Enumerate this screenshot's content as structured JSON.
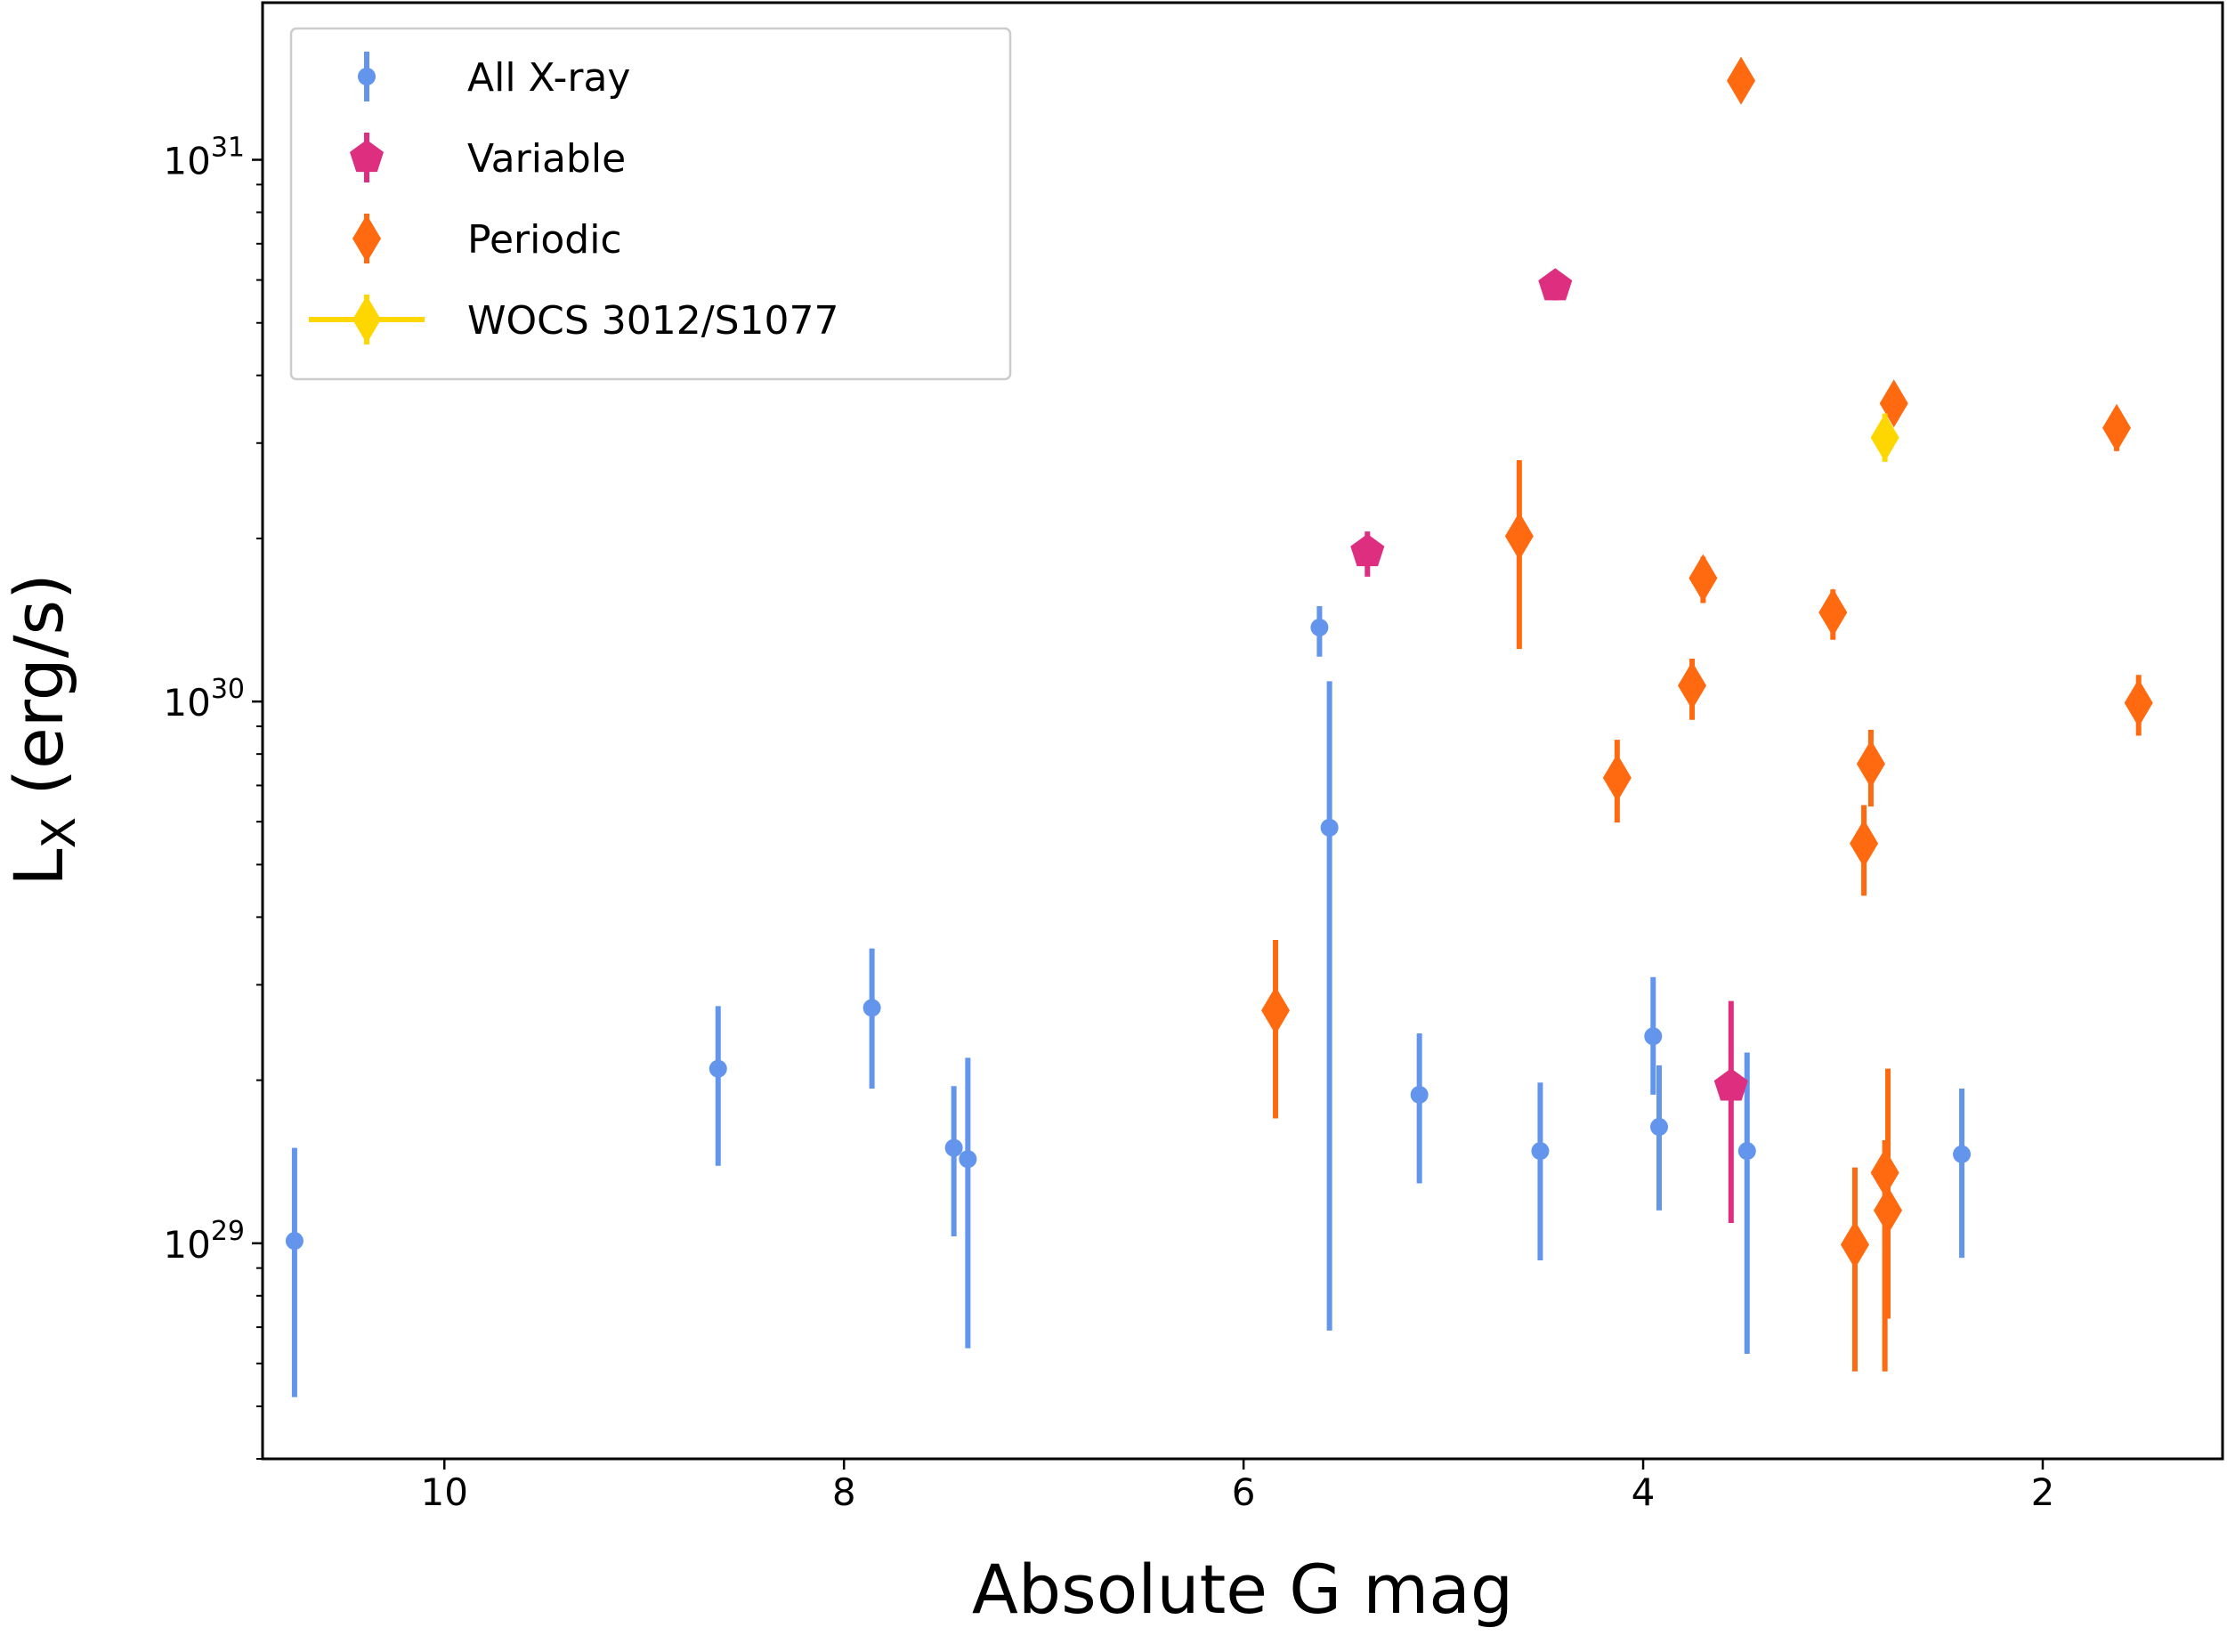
{
  "chart_data": {
    "type": "scatter",
    "xlabel": "Absolute G mag",
    "ylabel": [
      "L",
      "X",
      " (erg/s)"
    ],
    "xlim": [
      10.91,
      1.1
    ],
    "ylim": [
      4e+28,
      1.95e+31
    ],
    "log_y": true,
    "xticks": [
      10,
      8,
      6,
      4,
      2
    ],
    "yticks": [
      {
        "value": 1e+29,
        "label": "10^29"
      },
      {
        "value": 1e+30,
        "label": "10^30"
      },
      {
        "value": 1e+31,
        "label": "10^31"
      }
    ],
    "legend": "upper left",
    "series": [
      {
        "name": "All X-ray",
        "color": "#6495ed",
        "marker": "circle",
        "x": [
          10.75,
          8.63,
          7.86,
          7.45,
          7.38,
          5.62,
          5.57,
          5.12,
          4.515,
          3.95,
          3.92,
          3.48,
          2.405
        ],
        "values": [
          1.01e+29,
          2.1e+29,
          2.72e+29,
          1.5e+29,
          1.43e+29,
          1.37e+30,
          5.85e+29,
          1.88e+29,
          1.48e+29,
          2.41e+29,
          1.64e+29,
          1.48e+29,
          1.46e+29
        ],
        "lower": [
          5.2e+28,
          1.39e+29,
          1.93e+29,
          1.03e+29,
          6.4e+28,
          1.21e+30,
          6.9e+28,
          1.29e+29,
          9.3e+28,
          1.88e+29,
          1.15e+29,
          6.25e+28,
          9.4e+28
        ],
        "upper": [
          1.5e+29,
          2.74e+29,
          3.5e+29,
          1.95e+29,
          2.2e+29,
          1.5e+30,
          1.09e+30,
          2.44e+29,
          1.98e+29,
          3.1e+29,
          2.13e+29,
          2.25e+29,
          1.93e+29
        ]
      },
      {
        "name": "Variable",
        "color": "#dd2e7f",
        "marker": "pentagon",
        "x": [
          5.38,
          4.44,
          3.56
        ],
        "values": [
          1.89e+30,
          5.85e+30,
          1.95e+29
        ],
        "lower": [
          1.7e+30,
          5.5e+30,
          1.09e+29
        ],
        "upper": [
          2.06e+30,
          6.2e+30,
          2.8e+29
        ]
      },
      {
        "name": "Periodic",
        "color": "#ff6a10",
        "marker": "diamond",
        "x": [
          3.51,
          4.62,
          5.84,
          3.7,
          3.755,
          4.13,
          3.05,
          2.86,
          2.895,
          2.745,
          1.63,
          1.52,
          2.94,
          2.79,
          2.775
        ],
        "values": [
          1.4e+31,
          2.02e+30,
          2.69e+29,
          1.69e+30,
          1.07e+30,
          7.23e+29,
          1.46e+30,
          7.67e+29,
          5.47e+29,
          3.55e+30,
          3.2e+30,
          9.94e+29,
          9.94e+28,
          1.35e+29,
          1.15e+29
        ],
        "lower": [
          1.3e+31,
          1.25e+30,
          1.7e+29,
          1.52e+30,
          9.25e+29,
          5.98e+29,
          1.3e+30,
          6.4e+29,
          4.38e+29,
          3.3e+30,
          2.9e+30,
          8.65e+29,
          5.8e+28,
          5.8e+28,
          7.26e+28
        ],
        "upper": [
          1.52e+31,
          2.79e+30,
          3.63e+29,
          1.85e+30,
          1.2e+30,
          8.5e+29,
          1.61e+30,
          8.87e+29,
          6.44e+29,
          3.84e+30,
          3.46e+30,
          1.12e+30,
          1.38e+29,
          1.55e+29,
          2.1e+29
        ]
      },
      {
        "name": "WOCS 3012/S1077",
        "color": "#ffd700",
        "marker": "diamond",
        "x": [
          2.79
        ],
        "values": [
          3.07e+30
        ],
        "lower": [
          2.77e+30
        ],
        "upper": [
          3.4e+30
        ]
      }
    ]
  }
}
